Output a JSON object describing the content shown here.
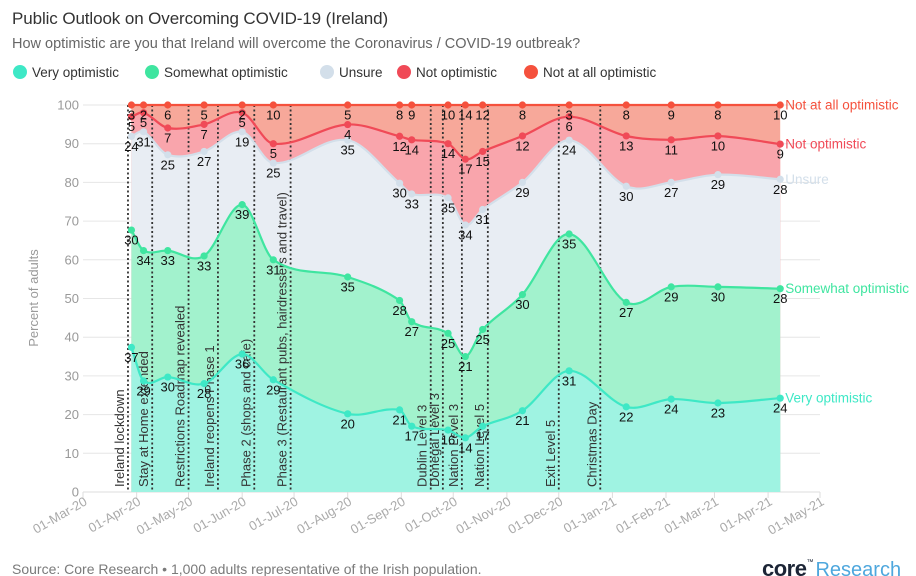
{
  "header": {
    "title": "Public Outlook on Overcoming COVID-19 (Ireland)",
    "subtitle": "How optimistic are you that Ireland will overcome the Coronavirus / COVID-19 outbreak?"
  },
  "legend": [
    {
      "label": "Very optimistic",
      "color": "#3ee8c6"
    },
    {
      "label": "Somewhat optimistic",
      "color": "#3fe5a0"
    },
    {
      "label": "Unsure",
      "color": "#d3dfea"
    },
    {
      "label": "Not optimistic",
      "color": "#f04a57"
    },
    {
      "label": "Not at all optimistic",
      "color": "#f5513d"
    }
  ],
  "footer": {
    "source": "Source: Core Research • 1,000 adults representative of the Irish population.",
    "logo_brand": "core",
    "logo_tm": "™",
    "logo_suffix": "Research"
  },
  "chart_data": {
    "type": "area",
    "stacking": "percent",
    "title": "Public Outlook on Overcoming COVID-19 (Ireland)",
    "subtitle": "How optimistic are you that Ireland will overcome the Coronavirus / COVID-19 outbreak?",
    "xlabel": "",
    "ylabel": "Percent of adults",
    "ylim": [
      0,
      100
    ],
    "yticks": [
      0,
      10,
      20,
      30,
      40,
      50,
      60,
      70,
      80,
      90,
      100
    ],
    "xlim": [
      "2020-03-01",
      "2021-05-01"
    ],
    "xticks": [
      {
        "date": "2020-03-01",
        "label": "01-Mar-20"
      },
      {
        "date": "2020-04-01",
        "label": "01-Apr-20"
      },
      {
        "date": "2020-05-01",
        "label": "01-May-20"
      },
      {
        "date": "2020-06-01",
        "label": "01-Jun-20"
      },
      {
        "date": "2020-07-01",
        "label": "01-Jul-20"
      },
      {
        "date": "2020-08-01",
        "label": "01-Aug-20"
      },
      {
        "date": "2020-09-01",
        "label": "01-Sep-20"
      },
      {
        "date": "2020-10-01",
        "label": "01-Oct-20"
      },
      {
        "date": "2020-11-01",
        "label": "01-Nov-20"
      },
      {
        "date": "2020-12-01",
        "label": "01-Dec-20"
      },
      {
        "date": "2021-01-01",
        "label": "01-Jan-21"
      },
      {
        "date": "2021-02-01",
        "label": "01-Feb-21"
      },
      {
        "date": "2021-03-01",
        "label": "01-Mar-21"
      },
      {
        "date": "2021-04-01",
        "label": "01-Apr-21"
      },
      {
        "date": "2021-05-01",
        "label": "01-May-21"
      }
    ],
    "grid": true,
    "legend_position": "top-left",
    "x": [
      "2020-03-29",
      "2020-04-05",
      "2020-04-19",
      "2020-05-10",
      "2020-06-01",
      "2020-06-19",
      "2020-08-01",
      "2020-08-31",
      "2020-09-07",
      "2020-09-28",
      "2020-10-08",
      "2020-10-18",
      "2020-11-10",
      "2020-12-07",
      "2021-01-09",
      "2021-02-04",
      "2021-03-03",
      "2021-04-08"
    ],
    "series": [
      {
        "name": "Very optimistic",
        "line_color": "#3ee8c6",
        "fill_color": "#9ff3e2",
        "values": [
          37,
          29,
          30,
          28,
          36,
          29,
          20,
          21,
          17,
          16,
          14,
          17,
          21,
          31,
          22,
          24,
          23,
          24
        ]
      },
      {
        "name": "Somewhat optimistic",
        "line_color": "#3fe5a0",
        "fill_color": "#a2f2cd",
        "values": [
          30,
          34,
          33,
          33,
          39,
          31,
          35,
          28,
          27,
          25,
          21,
          25,
          30,
          35,
          27,
          29,
          30,
          28
        ]
      },
      {
        "name": "Unsure",
        "line_color": "#d3dfea",
        "fill_color": "#e8edf3",
        "values": [
          24,
          31,
          25,
          27,
          19,
          25,
          35,
          30,
          33,
          35,
          34,
          31,
          29,
          24,
          30,
          27,
          29,
          28
        ]
      },
      {
        "name": "Not optimistic",
        "line_color": "#f04a57",
        "fill_color": "#f9a5ac",
        "values": [
          5,
          5,
          7,
          7,
          5,
          5,
          4,
          12,
          14,
          14,
          17,
          15,
          12,
          6,
          13,
          11,
          10,
          9
        ]
      },
      {
        "name": "Not at all optimistic",
        "line_color": "#f5513d",
        "fill_color": "#f7a89a",
        "values": [
          3,
          2,
          6,
          5,
          2,
          10,
          5,
          8,
          9,
          10,
          14,
          12,
          8,
          3,
          8,
          9,
          8,
          10
        ]
      }
    ],
    "events": [
      {
        "date": "2020-03-27",
        "label": "Ireland lockdown"
      },
      {
        "date": "2020-04-10",
        "label": "Stay at Home extended"
      },
      {
        "date": "2020-05-01",
        "label": "Restrictions Roadmap revealed"
      },
      {
        "date": "2020-05-18",
        "label": "Ireland reopens Phase 1"
      },
      {
        "date": "2020-06-08",
        "label": "Phase 2 (shops and cafe)"
      },
      {
        "date": "2020-06-29",
        "label": "Phase 3 (Restaurant pubs, hairdressers and travel)"
      },
      {
        "date": "2020-09-18",
        "label": "Dublin Level 3"
      },
      {
        "date": "2020-09-25",
        "label": "Donegal Level 3"
      },
      {
        "date": "2020-10-06",
        "label": "Nation Level 3"
      },
      {
        "date": "2020-10-21",
        "label": "Nation Level 5"
      },
      {
        "date": "2020-12-01",
        "label": "Exit Level 5"
      },
      {
        "date": "2020-12-25",
        "label": "Christmas Day"
      }
    ],
    "source": "Source: Core Research • 1,000 adults representative of the Irish population."
  }
}
